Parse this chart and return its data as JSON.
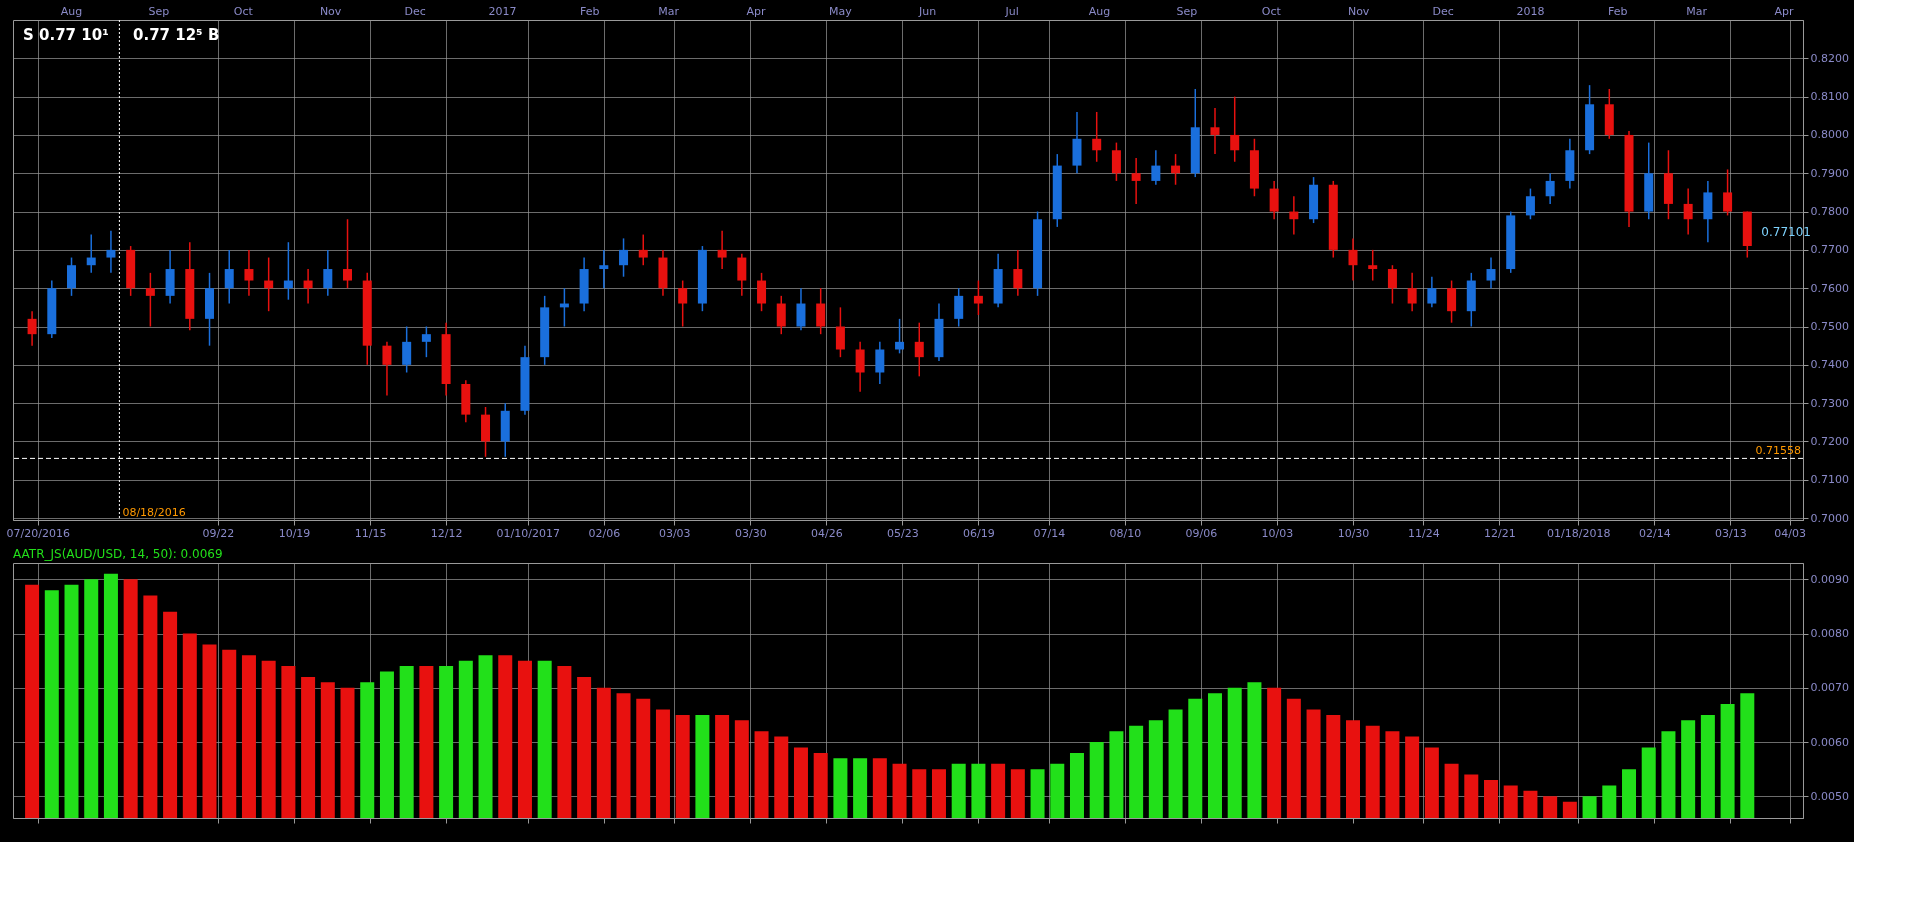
{
  "chart_data": [
    {
      "type": "candlestick",
      "annotations": [
        "S 0.77 10¹",
        "0.77 12⁵ B",
        {
          "text": "0.77101",
          "x": "2018-03-19",
          "y": 0.77101
        }
      ],
      "x": [
        "2016-07-18",
        "2016-07-25",
        "2016-08-01",
        "2016-08-08",
        "2016-08-15",
        "2016-08-22",
        "2016-08-29",
        "2016-09-05",
        "2016-09-12",
        "2016-09-19",
        "2016-09-26",
        "2016-10-03",
        "2016-10-10",
        "2016-10-17",
        "2016-10-24",
        "2016-10-31",
        "2016-11-07",
        "2016-11-14",
        "2016-11-21",
        "2016-11-28",
        "2016-12-05",
        "2016-12-12",
        "2016-12-19",
        "2016-12-26",
        "2017-01-02",
        "2017-01-09",
        "2017-01-16",
        "2017-01-23",
        "2017-01-30",
        "2017-02-06",
        "2017-02-13",
        "2017-02-20",
        "2017-02-27",
        "2017-03-06",
        "2017-03-13",
        "2017-03-20",
        "2017-03-27",
        "2017-04-03",
        "2017-04-10",
        "2017-04-17",
        "2017-04-24",
        "2017-05-01",
        "2017-05-08",
        "2017-05-15",
        "2017-05-22",
        "2017-05-29",
        "2017-06-05",
        "2017-06-12",
        "2017-06-19",
        "2017-06-26",
        "2017-07-03",
        "2017-07-10",
        "2017-07-17",
        "2017-07-24",
        "2017-07-31",
        "2017-08-07",
        "2017-08-14",
        "2017-08-21",
        "2017-08-28",
        "2017-09-04",
        "2017-09-11",
        "2017-09-18",
        "2017-09-25",
        "2017-10-02",
        "2017-10-09",
        "2017-10-16",
        "2017-10-23",
        "2017-10-30",
        "2017-11-06",
        "2017-11-13",
        "2017-11-20",
        "2017-11-27",
        "2017-12-04",
        "2017-12-11",
        "2017-12-18",
        "2017-12-25",
        "2018-01-01",
        "2018-01-08",
        "2018-01-15",
        "2018-01-22",
        "2018-01-29",
        "2018-02-05",
        "2018-02-12",
        "2018-02-19",
        "2018-02-26",
        "2018-03-05",
        "2018-03-12",
        "2018-03-19"
      ],
      "ohlc": [
        [
          0.752,
          0.754,
          0.745,
          0.748
        ],
        [
          0.748,
          0.762,
          0.747,
          0.76
        ],
        [
          0.76,
          0.768,
          0.758,
          0.766
        ],
        [
          0.766,
          0.774,
          0.764,
          0.768
        ],
        [
          0.768,
          0.775,
          0.764,
          0.77
        ],
        [
          0.77,
          0.771,
          0.758,
          0.76
        ],
        [
          0.76,
          0.764,
          0.75,
          0.758
        ],
        [
          0.758,
          0.77,
          0.756,
          0.765
        ],
        [
          0.765,
          0.772,
          0.749,
          0.752
        ],
        [
          0.752,
          0.764,
          0.745,
          0.76
        ],
        [
          0.76,
          0.77,
          0.756,
          0.765
        ],
        [
          0.765,
          0.77,
          0.758,
          0.762
        ],
        [
          0.762,
          0.768,
          0.754,
          0.76
        ],
        [
          0.76,
          0.772,
          0.757,
          0.762
        ],
        [
          0.762,
          0.765,
          0.756,
          0.76
        ],
        [
          0.76,
          0.77,
          0.758,
          0.765
        ],
        [
          0.765,
          0.778,
          0.76,
          0.762
        ],
        [
          0.762,
          0.764,
          0.74,
          0.745
        ],
        [
          0.745,
          0.746,
          0.732,
          0.74
        ],
        [
          0.74,
          0.75,
          0.738,
          0.746
        ],
        [
          0.746,
          0.75,
          0.742,
          0.748
        ],
        [
          0.748,
          0.751,
          0.732,
          0.735
        ],
        [
          0.735,
          0.736,
          0.725,
          0.727
        ],
        [
          0.727,
          0.729,
          0.716,
          0.72
        ],
        [
          0.72,
          0.73,
          0.716,
          0.728
        ],
        [
          0.728,
          0.745,
          0.727,
          0.742
        ],
        [
          0.742,
          0.758,
          0.74,
          0.755
        ],
        [
          0.755,
          0.76,
          0.75,
          0.756
        ],
        [
          0.756,
          0.768,
          0.754,
          0.765
        ],
        [
          0.765,
          0.77,
          0.76,
          0.766
        ],
        [
          0.766,
          0.773,
          0.763,
          0.77
        ],
        [
          0.77,
          0.774,
          0.766,
          0.768
        ],
        [
          0.768,
          0.77,
          0.758,
          0.76
        ],
        [
          0.76,
          0.762,
          0.75,
          0.756
        ],
        [
          0.756,
          0.771,
          0.754,
          0.77
        ],
        [
          0.77,
          0.775,
          0.765,
          0.768
        ],
        [
          0.768,
          0.769,
          0.758,
          0.762
        ],
        [
          0.762,
          0.764,
          0.754,
          0.756
        ],
        [
          0.756,
          0.758,
          0.748,
          0.75
        ],
        [
          0.75,
          0.76,
          0.749,
          0.756
        ],
        [
          0.756,
          0.76,
          0.748,
          0.75
        ],
        [
          0.75,
          0.755,
          0.742,
          0.744
        ],
        [
          0.744,
          0.746,
          0.733,
          0.738
        ],
        [
          0.738,
          0.746,
          0.735,
          0.744
        ],
        [
          0.744,
          0.752,
          0.743,
          0.746
        ],
        [
          0.746,
          0.751,
          0.737,
          0.742
        ],
        [
          0.742,
          0.756,
          0.741,
          0.752
        ],
        [
          0.752,
          0.76,
          0.75,
          0.758
        ],
        [
          0.758,
          0.762,
          0.753,
          0.756
        ],
        [
          0.756,
          0.769,
          0.755,
          0.765
        ],
        [
          0.765,
          0.77,
          0.758,
          0.76
        ],
        [
          0.76,
          0.78,
          0.758,
          0.778
        ],
        [
          0.778,
          0.795,
          0.776,
          0.792
        ],
        [
          0.792,
          0.806,
          0.79,
          0.799
        ],
        [
          0.799,
          0.806,
          0.793,
          0.796
        ],
        [
          0.796,
          0.798,
          0.788,
          0.79
        ],
        [
          0.79,
          0.794,
          0.782,
          0.788
        ],
        [
          0.788,
          0.796,
          0.787,
          0.792
        ],
        [
          0.792,
          0.795,
          0.787,
          0.79
        ],
        [
          0.79,
          0.812,
          0.789,
          0.802
        ],
        [
          0.802,
          0.807,
          0.795,
          0.8
        ],
        [
          0.8,
          0.81,
          0.793,
          0.796
        ],
        [
          0.796,
          0.799,
          0.784,
          0.786
        ],
        [
          0.786,
          0.788,
          0.778,
          0.78
        ],
        [
          0.78,
          0.784,
          0.774,
          0.778
        ],
        [
          0.778,
          0.789,
          0.777,
          0.787
        ],
        [
          0.787,
          0.788,
          0.768,
          0.77
        ],
        [
          0.77,
          0.773,
          0.762,
          0.766
        ],
        [
          0.766,
          0.77,
          0.762,
          0.765
        ],
        [
          0.765,
          0.766,
          0.756,
          0.76
        ],
        [
          0.76,
          0.764,
          0.754,
          0.756
        ],
        [
          0.756,
          0.763,
          0.755,
          0.76
        ],
        [
          0.76,
          0.762,
          0.751,
          0.754
        ],
        [
          0.754,
          0.764,
          0.75,
          0.762
        ],
        [
          0.762,
          0.768,
          0.76,
          0.765
        ],
        [
          0.765,
          0.78,
          0.764,
          0.779
        ],
        [
          0.779,
          0.786,
          0.778,
          0.784
        ],
        [
          0.784,
          0.79,
          0.782,
          0.788
        ],
        [
          0.788,
          0.799,
          0.786,
          0.796
        ],
        [
          0.796,
          0.813,
          0.795,
          0.808
        ],
        [
          0.808,
          0.812,
          0.799,
          0.8
        ],
        [
          0.8,
          0.801,
          0.776,
          0.78
        ],
        [
          0.78,
          0.798,
          0.778,
          0.79
        ],
        [
          0.79,
          0.796,
          0.778,
          0.782
        ],
        [
          0.782,
          0.786,
          0.774,
          0.778
        ],
        [
          0.778,
          0.788,
          0.772,
          0.785
        ],
        [
          0.785,
          0.791,
          0.779,
          0.78
        ],
        [
          0.78,
          0.78,
          0.768,
          0.77101
        ]
      ],
      "colors": [
        "#e8110f",
        "#1a6fdc",
        "#1a6fdc",
        "#1a6fdc",
        "#1a6fdc",
        "#e8110f",
        "#e8110f",
        "#1a6fdc",
        "#e8110f",
        "#1a6fdc",
        "#1a6fdc",
        "#e8110f",
        "#e8110f",
        "#1a6fdc",
        "#e8110f",
        "#1a6fdc",
        "#e8110f",
        "#e8110f",
        "#e8110f",
        "#1a6fdc",
        "#1a6fdc",
        "#e8110f",
        "#e8110f",
        "#e8110f",
        "#1a6fdc",
        "#1a6fdc",
        "#1a6fdc",
        "#1a6fdc",
        "#1a6fdc",
        "#1a6fdc",
        "#1a6fdc",
        "#e8110f",
        "#e8110f",
        "#e8110f",
        "#1a6fdc",
        "#e8110f",
        "#e8110f",
        "#e8110f",
        "#e8110f",
        "#1a6fdc",
        "#e8110f",
        "#e8110f",
        "#e8110f",
        "#1a6fdc",
        "#1a6fdc",
        "#e8110f",
        "#1a6fdc",
        "#1a6fdc",
        "#e8110f",
        "#1a6fdc",
        "#e8110f",
        "#1a6fdc",
        "#1a6fdc",
        "#1a6fdc",
        "#e8110f",
        "#e8110f",
        "#e8110f",
        "#1a6fdc",
        "#e8110f",
        "#1a6fdc",
        "#e8110f",
        "#e8110f",
        "#e8110f",
        "#e8110f",
        "#e8110f",
        "#1a6fdc",
        "#e8110f",
        "#e8110f",
        "#e8110f",
        "#e8110f",
        "#e8110f",
        "#1a6fdc",
        "#e8110f",
        "#1a6fdc",
        "#1a6fdc",
        "#1a6fdc",
        "#1a6fdc",
        "#1a6fdc",
        "#1a6fdc",
        "#1a6fdc",
        "#e8110f",
        "#e8110f",
        "#1a6fdc",
        "#e8110f",
        "#e8110f",
        "#1a6fdc",
        "#e8110f",
        "#e8110f"
      ],
      "xlim": [
        "2016-07-13",
        "2018-04-06"
      ],
      "xticks": [
        {
          "value": "2016-07-20",
          "label": "07/20/2016"
        },
        {
          "value": "2016-09-22",
          "label": "09/22"
        },
        {
          "value": "2016-10-19",
          "label": "10/19"
        },
        {
          "value": "2016-11-15",
          "label": "11/15"
        },
        {
          "value": "2016-12-12",
          "label": "12/12"
        },
        {
          "value": "2017-01-10",
          "label": "01/10/2017"
        },
        {
          "value": "2017-02-06",
          "label": "02/06"
        },
        {
          "value": "2017-03-03",
          "label": "03/03"
        },
        {
          "value": "2017-03-30",
          "label": "03/30"
        },
        {
          "value": "2017-04-26",
          "label": "04/26"
        },
        {
          "value": "2017-05-23",
          "label": "05/23"
        },
        {
          "value": "2017-06-19",
          "label": "06/19"
        },
        {
          "value": "2017-07-14",
          "label": "07/14"
        },
        {
          "value": "2017-08-10",
          "label": "08/10"
        },
        {
          "value": "2017-09-06",
          "label": "09/06"
        },
        {
          "value": "2017-10-03",
          "label": "10/03"
        },
        {
          "value": "2017-10-30",
          "label": "10/30"
        },
        {
          "value": "2017-11-24",
          "label": "11/24"
        },
        {
          "value": "2017-12-21",
          "label": "12/21"
        },
        {
          "value": "2018-01-18",
          "label": "01/18/2018"
        },
        {
          "value": "2018-02-14",
          "label": "02/14"
        },
        {
          "value": "2018-03-13",
          "label": "03/13"
        },
        {
          "value": "2018-04-03",
          "label": "04/03"
        }
      ],
      "x2lim": [
        "2016-07-13",
        "2018-04-06"
      ],
      "x2ticks": [
        {
          "value": "2016-08-01",
          "label": "Aug"
        },
        {
          "value": "2016-09-01",
          "label": "Sep"
        },
        {
          "value": "2016-10-01",
          "label": "Oct"
        },
        {
          "value": "2016-11-01",
          "label": "Nov"
        },
        {
          "value": "2016-12-01",
          "label": "Dec"
        },
        {
          "value": "2017-01-01",
          "label": "2017"
        },
        {
          "value": "2017-02-01",
          "label": "Feb"
        },
        {
          "value": "2017-03-01",
          "label": "Mar"
        },
        {
          "value": "2017-04-01",
          "label": "Apr"
        },
        {
          "value": "2017-05-01",
          "label": "May"
        },
        {
          "value": "2017-06-01",
          "label": "Jun"
        },
        {
          "value": "2017-07-01",
          "label": "Jul"
        },
        {
          "value": "2017-08-01",
          "label": "Aug"
        },
        {
          "value": "2017-09-01",
          "label": "Sep"
        },
        {
          "value": "2017-10-01",
          "label": "Oct"
        },
        {
          "value": "2017-11-01",
          "label": "Nov"
        },
        {
          "value": "2017-12-01",
          "label": "Dec"
        },
        {
          "value": "2018-01-01",
          "label": "2018"
        },
        {
          "value": "2018-02-01",
          "label": "Feb"
        },
        {
          "value": "2018-03-01",
          "label": "Mar"
        },
        {
          "value": "2018-04-01",
          "label": "Apr"
        }
      ],
      "ylim": [
        0.6995,
        0.83
      ],
      "yticks": [
        {
          "value": 0.7,
          "label": "0.7000"
        },
        {
          "value": 0.71,
          "label": "0.7100"
        },
        {
          "value": 0.72,
          "label": "0.7200"
        },
        {
          "value": 0.73,
          "label": "0.7300"
        },
        {
          "value": 0.74,
          "label": "0.7400"
        },
        {
          "value": 0.75,
          "label": "0.7500"
        },
        {
          "value": 0.76,
          "label": "0.7600"
        },
        {
          "value": 0.77,
          "label": "0.7700"
        },
        {
          "value": 0.78,
          "label": "0.7800"
        },
        {
          "value": 0.79,
          "label": "0.7900"
        },
        {
          "value": 0.8,
          "label": "0.8000"
        },
        {
          "value": 0.81,
          "label": "0.8100"
        },
        {
          "value": 0.82,
          "label": "0.8200"
        }
      ],
      "ref_lines": [
        {
          "axis": "y",
          "value": 0.71558,
          "label": "0.71558",
          "color": "#ffffff",
          "line_style": "dashed"
        },
        {
          "axis": "x",
          "value": "2016-08-18",
          "label": "08/18/2016",
          "color": "#ffffff",
          "line_style": "dotted"
        }
      ],
      "grid": true
    },
    {
      "type": "bar",
      "title": "AATR_JS(AUD/USD, 14, 50): 0.0069",
      "x": [
        "2016-07-18",
        "2016-07-25",
        "2016-08-01",
        "2016-08-08",
        "2016-08-15",
        "2016-08-22",
        "2016-08-29",
        "2016-09-05",
        "2016-09-12",
        "2016-09-19",
        "2016-09-26",
        "2016-10-03",
        "2016-10-10",
        "2016-10-17",
        "2016-10-24",
        "2016-10-31",
        "2016-11-07",
        "2016-11-14",
        "2016-11-21",
        "2016-11-28",
        "2016-12-05",
        "2016-12-12",
        "2016-12-19",
        "2016-12-26",
        "2017-01-02",
        "2017-01-09",
        "2017-01-16",
        "2017-01-23",
        "2017-01-30",
        "2017-02-06",
        "2017-02-13",
        "2017-02-20",
        "2017-02-27",
        "2017-03-06",
        "2017-03-13",
        "2017-03-20",
        "2017-03-27",
        "2017-04-03",
        "2017-04-10",
        "2017-04-17",
        "2017-04-24",
        "2017-05-01",
        "2017-05-08",
        "2017-05-15",
        "2017-05-22",
        "2017-05-29",
        "2017-06-05",
        "2017-06-12",
        "2017-06-19",
        "2017-06-26",
        "2017-07-03",
        "2017-07-10",
        "2017-07-17",
        "2017-07-24",
        "2017-07-31",
        "2017-08-07",
        "2017-08-14",
        "2017-08-21",
        "2017-08-28",
        "2017-09-04",
        "2017-09-11",
        "2017-09-18",
        "2017-09-25",
        "2017-10-02",
        "2017-10-09",
        "2017-10-16",
        "2017-10-23",
        "2017-10-30",
        "2017-11-06",
        "2017-11-13",
        "2017-11-20",
        "2017-11-27",
        "2017-12-04",
        "2017-12-11",
        "2017-12-18",
        "2017-12-25",
        "2018-01-01",
        "2018-01-08",
        "2018-01-15",
        "2018-01-22",
        "2018-01-29",
        "2018-02-05",
        "2018-02-12",
        "2018-02-19",
        "2018-02-26",
        "2018-03-05",
        "2018-03-12",
        "2018-03-19"
      ],
      "values": [
        0.0089,
        0.0088,
        0.0089,
        0.009,
        0.0091,
        0.009,
        0.0087,
        0.0084,
        0.008,
        0.0078,
        0.0077,
        0.0076,
        0.0075,
        0.0074,
        0.0072,
        0.0071,
        0.007,
        0.0071,
        0.0073,
        0.0074,
        0.0074,
        0.0074,
        0.0075,
        0.0076,
        0.0076,
        0.0075,
        0.0075,
        0.0074,
        0.0072,
        0.007,
        0.0069,
        0.0068,
        0.0066,
        0.0065,
        0.0065,
        0.0065,
        0.0064,
        0.0062,
        0.0061,
        0.0059,
        0.0058,
        0.0057,
        0.0057,
        0.0057,
        0.0056,
        0.0055,
        0.0055,
        0.0056,
        0.0056,
        0.0056,
        0.0055,
        0.0055,
        0.0056,
        0.0058,
        0.006,
        0.0062,
        0.0063,
        0.0064,
        0.0066,
        0.0068,
        0.0069,
        0.007,
        0.0071,
        0.007,
        0.0068,
        0.0066,
        0.0065,
        0.0064,
        0.0063,
        0.0062,
        0.0061,
        0.0059,
        0.0056,
        0.0054,
        0.0053,
        0.0052,
        0.0051,
        0.005,
        0.0049,
        0.005,
        0.0052,
        0.0055,
        0.0059,
        0.0062,
        0.0064,
        0.0065,
        0.0067,
        0.0069
      ],
      "colors": [
        "#e8110f",
        "#22e01a",
        "#22e01a",
        "#22e01a",
        "#22e01a",
        "#e8110f",
        "#e8110f",
        "#e8110f",
        "#e8110f",
        "#e8110f",
        "#e8110f",
        "#e8110f",
        "#e8110f",
        "#e8110f",
        "#e8110f",
        "#e8110f",
        "#e8110f",
        "#22e01a",
        "#22e01a",
        "#22e01a",
        "#e8110f",
        "#22e01a",
        "#22e01a",
        "#22e01a",
        "#e8110f",
        "#e8110f",
        "#22e01a",
        "#e8110f",
        "#e8110f",
        "#e8110f",
        "#e8110f",
        "#e8110f",
        "#e8110f",
        "#e8110f",
        "#22e01a",
        "#e8110f",
        "#e8110f",
        "#e8110f",
        "#e8110f",
        "#e8110f",
        "#e8110f",
        "#22e01a",
        "#22e01a",
        "#e8110f",
        "#e8110f",
        "#e8110f",
        "#e8110f",
        "#22e01a",
        "#22e01a",
        "#e8110f",
        "#e8110f",
        "#22e01a",
        "#22e01a",
        "#22e01a",
        "#22e01a",
        "#22e01a",
        "#22e01a",
        "#22e01a",
        "#22e01a",
        "#22e01a",
        "#22e01a",
        "#22e01a",
        "#22e01a",
        "#e8110f",
        "#e8110f",
        "#e8110f",
        "#e8110f",
        "#e8110f",
        "#e8110f",
        "#e8110f",
        "#e8110f",
        "#e8110f",
        "#e8110f",
        "#e8110f",
        "#e8110f",
        "#e8110f",
        "#e8110f",
        "#e8110f",
        "#e8110f",
        "#22e01a",
        "#22e01a",
        "#22e01a",
        "#22e01a",
        "#22e01a",
        "#22e01a",
        "#22e01a",
        "#22e01a",
        "#22e01a"
      ],
      "xlim": [
        "2016-07-13",
        "2018-04-06"
      ],
      "xticks": [
        {
          "value": "2016-07-20",
          "label": null
        },
        {
          "value": "2016-09-22",
          "label": null
        },
        {
          "value": "2016-10-19",
          "label": null
        },
        {
          "value": "2016-11-15",
          "label": null
        },
        {
          "value": "2016-12-12",
          "label": null
        },
        {
          "value": "2017-01-10",
          "label": null
        },
        {
          "value": "2017-02-06",
          "label": null
        },
        {
          "value": "2017-03-03",
          "label": null
        },
        {
          "value": "2017-03-30",
          "label": null
        },
        {
          "value": "2017-04-26",
          "label": null
        },
        {
          "value": "2017-05-23",
          "label": null
        },
        {
          "value": "2017-06-19",
          "label": null
        },
        {
          "value": "2017-07-14",
          "label": null
        },
        {
          "value": "2017-08-10",
          "label": null
        },
        {
          "value": "2017-09-06",
          "label": null
        },
        {
          "value": "2017-10-03",
          "label": null
        },
        {
          "value": "2017-10-30",
          "label": null
        },
        {
          "value": "2017-11-24",
          "label": null
        },
        {
          "value": "2017-12-21",
          "label": null
        },
        {
          "value": "2018-01-18",
          "label": null
        },
        {
          "value": "2018-02-14",
          "label": null
        },
        {
          "value": "2018-03-13",
          "label": null
        },
        {
          "value": "2018-04-03",
          "label": null
        }
      ],
      "ylim": [
        0.0046,
        0.0093
      ],
      "yticks": [
        {
          "value": 0.005,
          "label": "0.0050"
        },
        {
          "value": 0.006,
          "label": "0.0060"
        },
        {
          "value": 0.007,
          "label": "0.0070"
        },
        {
          "value": 0.008,
          "label": "0.0080"
        },
        {
          "value": 0.009,
          "label": "0.0090"
        }
      ],
      "tick_labels": "y",
      "grid": true
    }
  ]
}
